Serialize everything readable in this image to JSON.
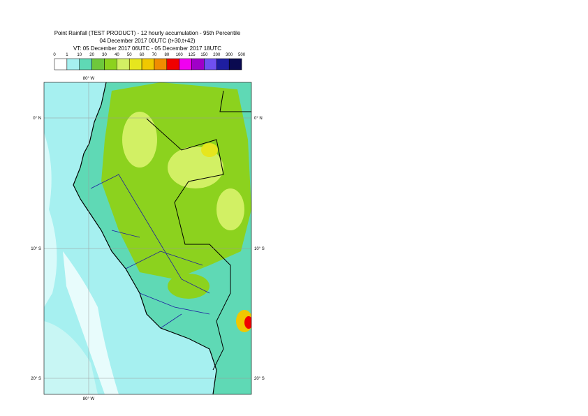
{
  "header": {
    "title": "Point Rainfall (TEST PRODUCT) - 12 hourly accumulation - 95th Percentile",
    "subtitle": "04 December 2017 00UTC (t+30,t+42)",
    "valid_time": "VT: 05 December 2017 06UTC - 05 December 2017 18UTC"
  },
  "legend": {
    "labels": [
      0,
      1,
      10,
      20,
      30,
      40,
      50,
      60,
      70,
      80,
      100,
      125,
      150,
      200,
      300,
      500
    ],
    "colors": [
      "#ffffff",
      "#a6f0f0",
      "#5fd9b5",
      "#6ec83c",
      "#8cd21e",
      "#d2f064",
      "#e6e61e",
      "#f0c800",
      "#f08c00",
      "#f00000",
      "#f000f0",
      "#a000c8",
      "#7050f0",
      "#1e1ea0",
      "#0a0a50"
    ]
  },
  "map": {
    "lon_labels": [
      "80° W"
    ],
    "lat_labels": [
      "0° N",
      "10° S",
      "20° S"
    ]
  }
}
